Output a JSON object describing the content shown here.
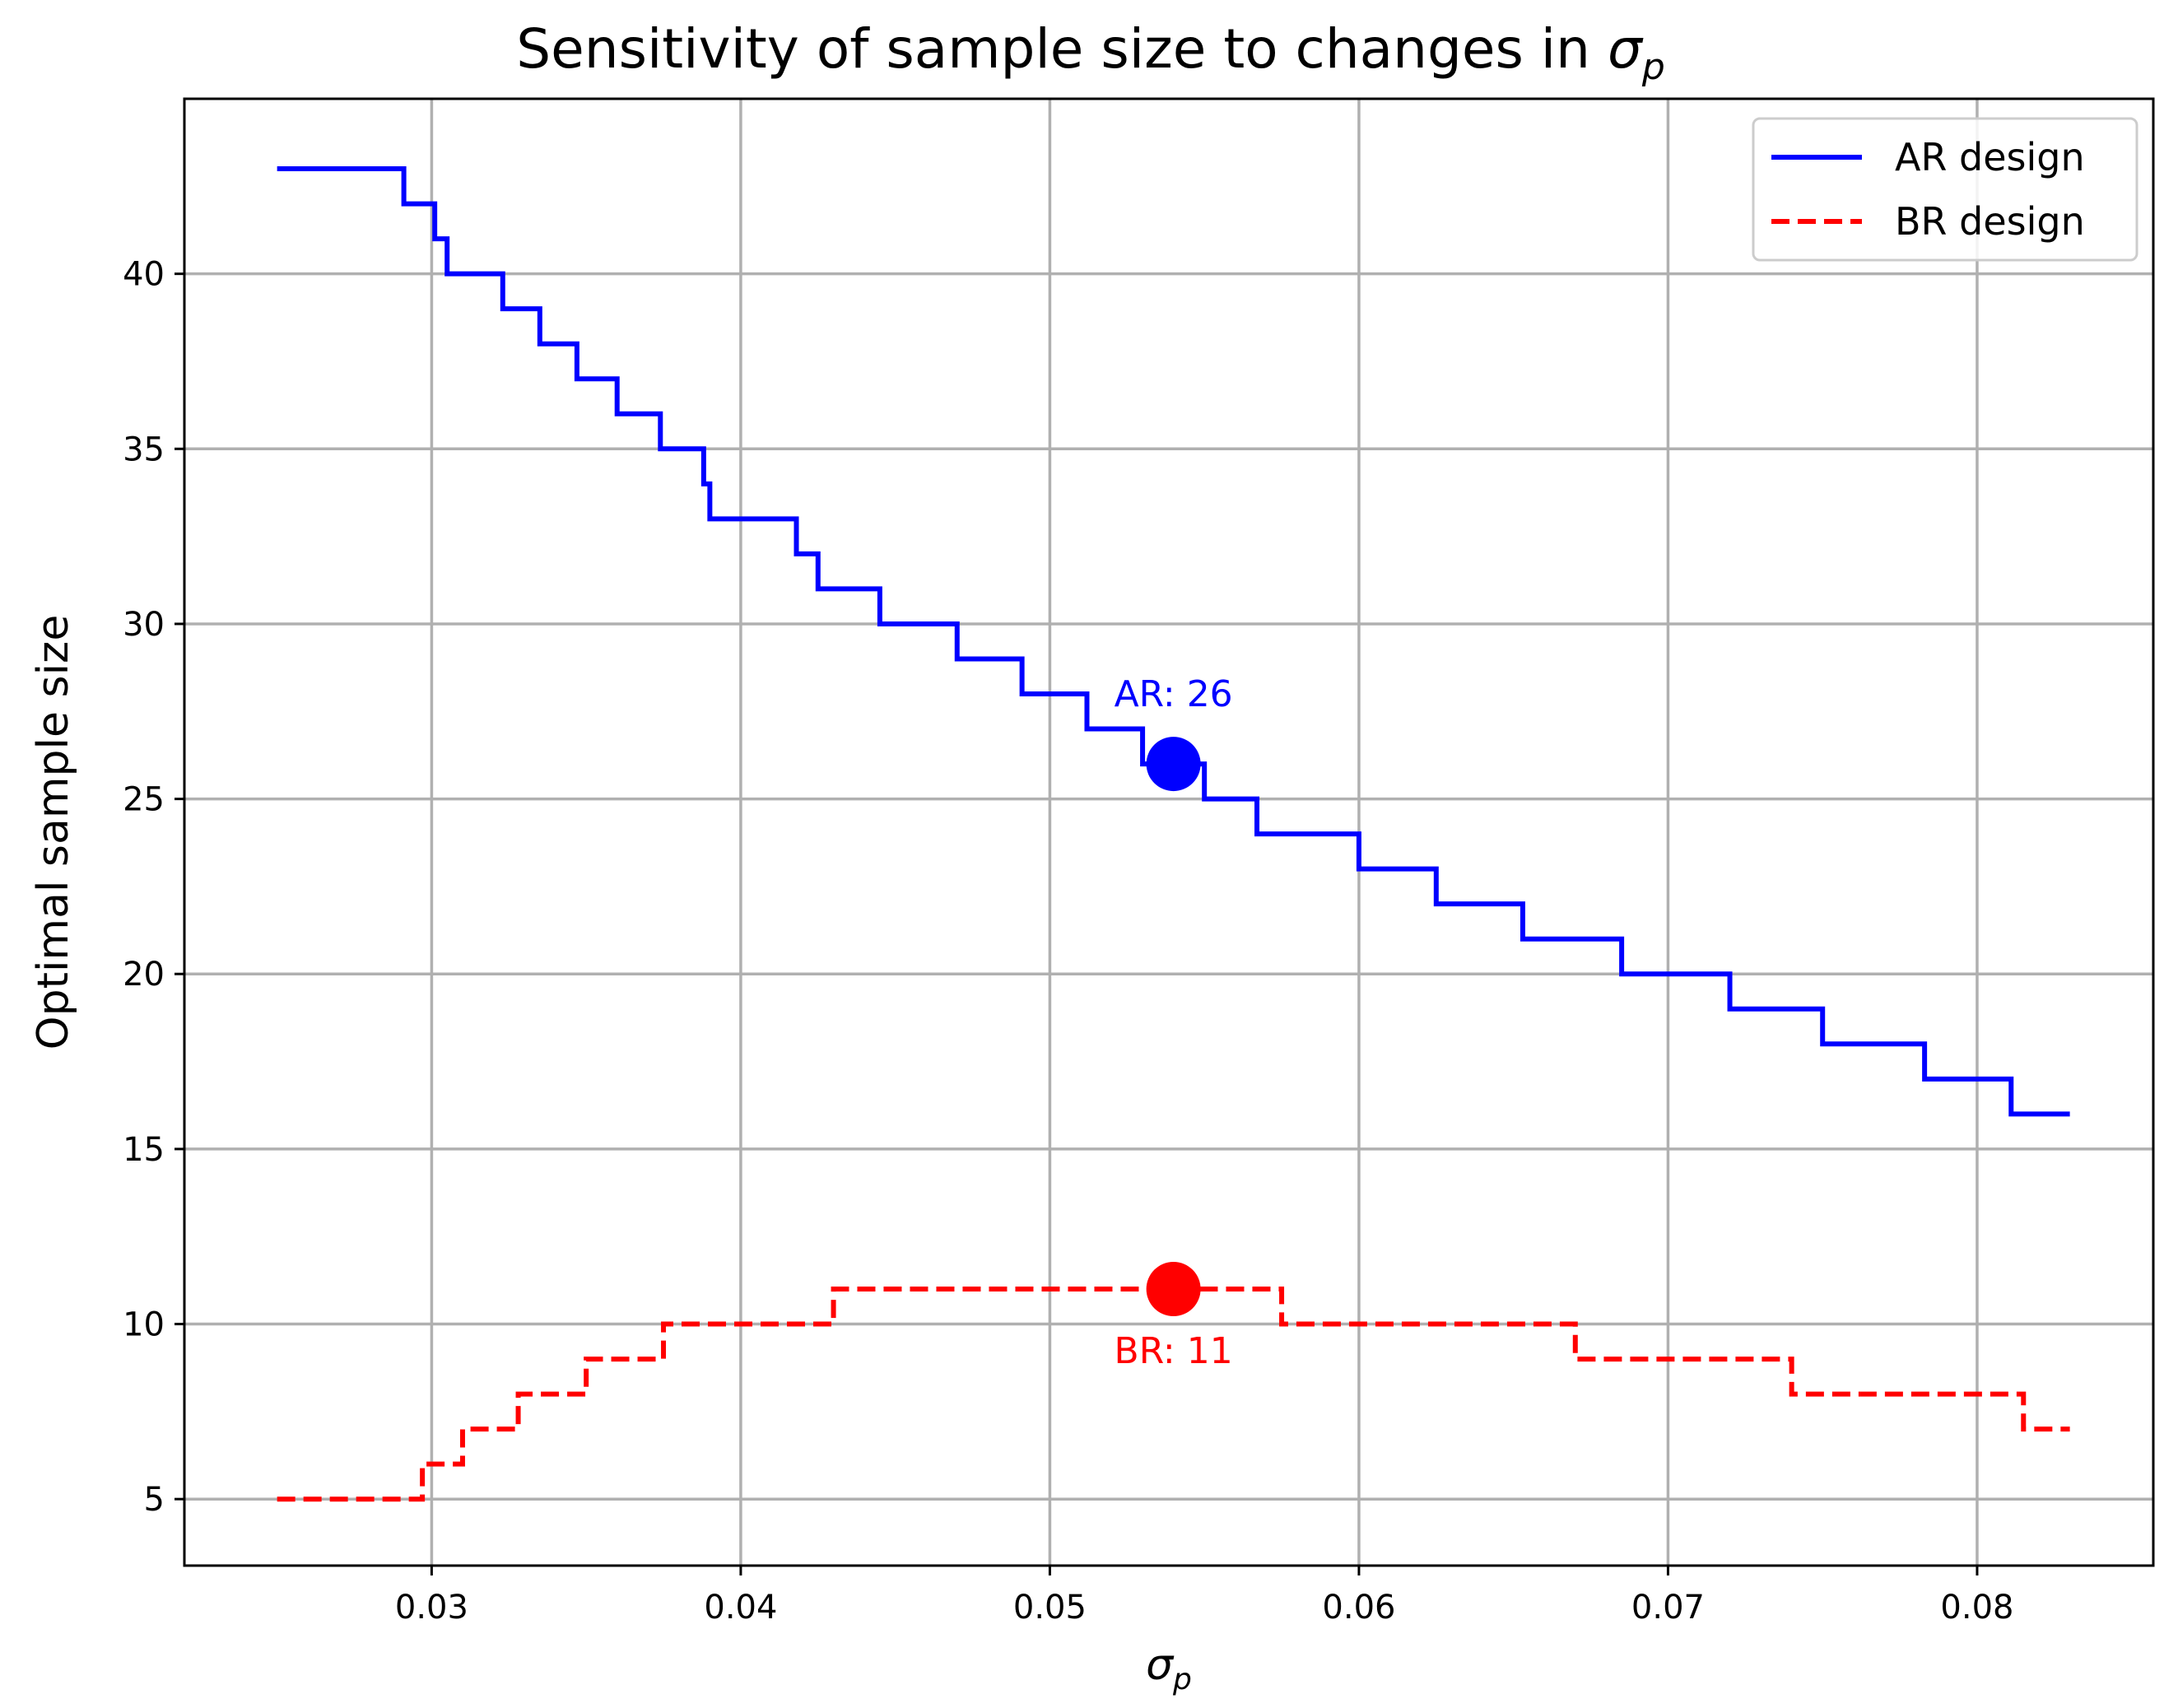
{
  "chart_data": {
    "type": "line",
    "title": "Sensitivity of sample size to changes in",
    "title_symbol": "σ",
    "title_symbol_sub": "p",
    "xlabel_symbol": "σ",
    "xlabel_sub": "p",
    "ylabel": "Optimal sample size",
    "xlim": [
      0.022,
      0.0857
    ],
    "ylim": [
      3.1,
      45.0
    ],
    "xticks": [
      0.03,
      0.04,
      0.05,
      0.06,
      0.07,
      0.08
    ],
    "xtick_labels": [
      "0.03",
      "0.04",
      "0.05",
      "0.06",
      "0.07",
      "0.08"
    ],
    "yticks": [
      5,
      10,
      15,
      20,
      25,
      30,
      35,
      40
    ],
    "ytick_labels": [
      "5",
      "10",
      "15",
      "20",
      "25",
      "30",
      "35",
      "40"
    ],
    "grid": true,
    "legend_position": "top-right",
    "series": [
      {
        "name": "AR design",
        "color": "#0000ff",
        "style": "solid",
        "x": [
          0.025,
          0.0291,
          0.0301,
          0.0305,
          0.0323,
          0.0335,
          0.0347,
          0.036,
          0.0374,
          0.0388,
          0.039,
          0.0418,
          0.0425,
          0.0445,
          0.047,
          0.0491,
          0.0512,
          0.053,
          0.055,
          0.0567,
          0.06,
          0.0625,
          0.0653,
          0.0685,
          0.072,
          0.075,
          0.0783,
          0.0811,
          0.083
        ],
        "y": [
          43,
          42,
          41,
          40,
          39,
          38,
          37,
          36,
          35,
          34,
          33,
          32,
          31,
          30,
          29,
          28,
          27,
          26,
          25,
          24,
          23,
          22,
          21,
          20,
          19,
          18,
          17,
          16,
          16
        ]
      },
      {
        "name": "BR design",
        "color": "#ff0000",
        "style": "dashed",
        "x": [
          0.025,
          0.0297,
          0.031,
          0.0328,
          0.035,
          0.0375,
          0.043,
          0.0575,
          0.067,
          0.074,
          0.0815,
          0.083
        ],
        "y": [
          5,
          6,
          7,
          8,
          9,
          10,
          11,
          10,
          9,
          8,
          7,
          7
        ]
      }
    ],
    "markers": [
      {
        "series": "AR design",
        "x": 0.054,
        "y": 26,
        "color": "#0000ff",
        "label": "AR: 26",
        "label_position": "above"
      },
      {
        "series": "BR design",
        "x": 0.054,
        "y": 11,
        "color": "#ff0000",
        "label": "BR: 11",
        "label_position": "below"
      }
    ]
  }
}
